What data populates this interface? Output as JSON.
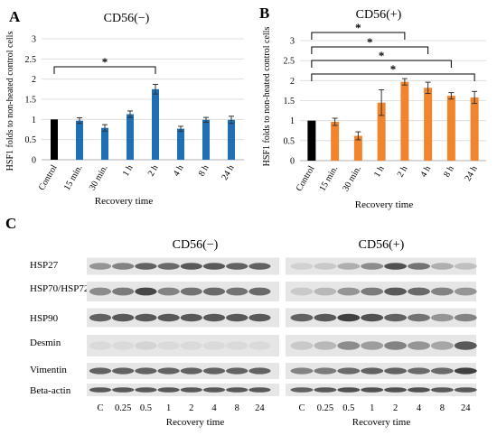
{
  "chart_data": [
    {
      "type": "bar",
      "panel_letter": "A",
      "title": "CD56(−)",
      "xlabel": "Recovery time",
      "ylabel": "HSF1 folds to non-heated control cells",
      "ylim": [
        0,
        3
      ],
      "yticks": [
        "0",
        "0.5",
        "1",
        "1.5",
        "2",
        "2.5",
        "3"
      ],
      "grid": true,
      "categories": [
        "Control",
        "15 min.",
        "30 min.",
        "1 h",
        "2 h",
        "4 h",
        "8 h",
        "24 h"
      ],
      "values": [
        1.0,
        0.97,
        0.79,
        1.13,
        1.75,
        0.77,
        0.99,
        0.99
      ],
      "errors": [
        0,
        0.07,
        0.08,
        0.08,
        0.12,
        0.06,
        0.06,
        0.09
      ],
      "colors": [
        "#000000",
        "#1f6fb5",
        "#1f6fb5",
        "#1f6fb5",
        "#1f6fb5",
        "#1f6fb5",
        "#1f6fb5",
        "#1f6fb5"
      ],
      "significance": [
        {
          "from": "Control",
          "to": "2 h",
          "label": "*"
        }
      ]
    },
    {
      "type": "bar",
      "panel_letter": "B",
      "title": "CD56(+)",
      "xlabel": "Recovery time",
      "ylabel": "HSF1 folds to non-heated control cells",
      "ylim": [
        0,
        3
      ],
      "yticks": [
        "0",
        "0.5",
        "1",
        "1.5",
        "2",
        "2.5",
        "3"
      ],
      "grid": true,
      "categories": [
        "Control",
        "15 min.",
        "30 min.",
        "1 h",
        "2 h",
        "4 h",
        "8 h",
        "24 h"
      ],
      "values": [
        1.0,
        0.97,
        0.62,
        1.45,
        1.97,
        1.82,
        1.62,
        1.58
      ],
      "errors": [
        0,
        0.09,
        0.1,
        0.32,
        0.08,
        0.14,
        0.08,
        0.15
      ],
      "colors": [
        "#000000",
        "#f0852d",
        "#f0852d",
        "#f0852d",
        "#f0852d",
        "#f0852d",
        "#f0852d",
        "#f0852d"
      ],
      "significance": [
        {
          "from": "Control",
          "to": "2 h",
          "label": "*"
        },
        {
          "from": "Control",
          "to": "4 h",
          "label": "*"
        },
        {
          "from": "Control",
          "to": "8 h",
          "label": "*"
        },
        {
          "from": "Control",
          "to": "24 h",
          "label": "*"
        }
      ]
    }
  ],
  "blot_panel": {
    "panel_letter": "C",
    "group_titles": [
      "CD56(−)",
      "CD56(+)"
    ],
    "proteins": [
      "HSP27",
      "HSP70/HSP72",
      "HSP90",
      "Desmin",
      "Vimentin",
      "Beta-actin"
    ],
    "lane_labels": [
      "C",
      "0.25",
      "0.5",
      "1",
      "2",
      "4",
      "8",
      "24"
    ],
    "xlabel": "Recovery time",
    "intensity": {
      "CD56(−)": [
        [
          0.45,
          0.55,
          0.75,
          0.7,
          0.8,
          0.8,
          0.75,
          0.75
        ],
        [
          0.5,
          0.6,
          0.9,
          0.55,
          0.65,
          0.7,
          0.65,
          0.7
        ],
        [
          0.75,
          0.8,
          0.8,
          0.8,
          0.8,
          0.8,
          0.8,
          0.8
        ],
        [
          0.05,
          0.05,
          0.08,
          0.05,
          0.05,
          0.05,
          0.05,
          0.05
        ],
        [
          0.75,
          0.75,
          0.75,
          0.75,
          0.75,
          0.75,
          0.75,
          0.75
        ],
        [
          0.8,
          0.8,
          0.8,
          0.8,
          0.8,
          0.8,
          0.8,
          0.8
        ]
      ],
      "CD56(+)": [
        [
          0.1,
          0.15,
          0.3,
          0.5,
          0.85,
          0.65,
          0.3,
          0.2
        ],
        [
          0.15,
          0.25,
          0.45,
          0.6,
          0.8,
          0.7,
          0.55,
          0.45
        ],
        [
          0.75,
          0.8,
          0.95,
          0.85,
          0.75,
          0.65,
          0.45,
          0.55
        ],
        [
          0.15,
          0.25,
          0.5,
          0.4,
          0.55,
          0.45,
          0.35,
          0.8
        ],
        [
          0.55,
          0.6,
          0.7,
          0.75,
          0.75,
          0.7,
          0.7,
          0.95
        ],
        [
          0.75,
          0.8,
          0.85,
          0.85,
          0.85,
          0.85,
          0.8,
          0.8
        ]
      ]
    }
  }
}
